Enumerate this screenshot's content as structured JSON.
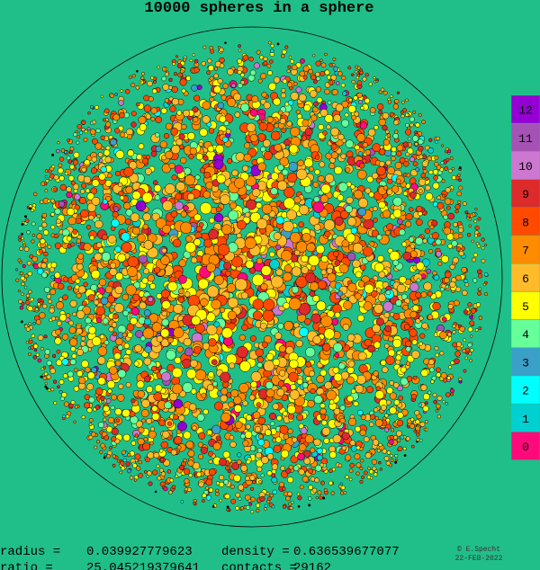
{
  "header": {
    "title": "10000 spheres in a sphere"
  },
  "legend": [
    {
      "label": "12",
      "color": "#9400d3"
    },
    {
      "label": "11",
      "color": "#a552b5"
    },
    {
      "label": "10",
      "color": "#cc77d0"
    },
    {
      "label": "9",
      "color": "#dd2a2a"
    },
    {
      "label": "8",
      "color": "#ff4a00"
    },
    {
      "label": "7",
      "color": "#ff8c00"
    },
    {
      "label": "6",
      "color": "#ffbb2a"
    },
    {
      "label": "5",
      "color": "#ffff00"
    },
    {
      "label": "4",
      "color": "#66ff99"
    },
    {
      "label": "3",
      "color": "#3aa0c8"
    },
    {
      "label": "2",
      "color": "#00ffff"
    },
    {
      "label": "1",
      "color": "#00d0d0"
    },
    {
      "label": "0",
      "color": "#ff0a7a"
    }
  ],
  "stats": [
    {
      "label": "radius =",
      "value": "0.039927779623"
    },
    {
      "label": "density =",
      "value": "0.636539677077"
    },
    {
      "label": "ratio =",
      "value": "25.045219379641"
    },
    {
      "label": "contacts =",
      "value": "29162"
    }
  ],
  "credit": {
    "author": "© E.Specht",
    "date": "22-FEB-2022"
  }
}
